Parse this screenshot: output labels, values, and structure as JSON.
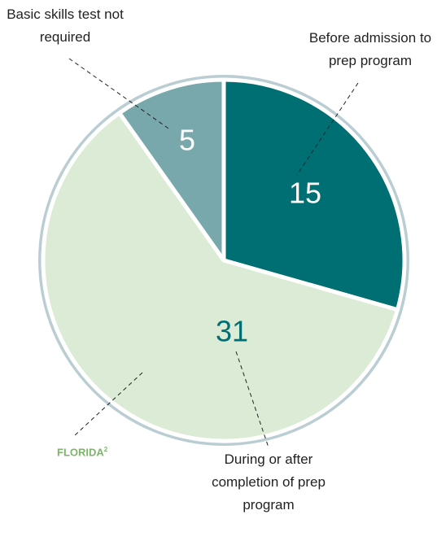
{
  "chart_data": {
    "type": "pie",
    "categories": [
      "Before admission to prep program",
      "During or after completion of prep program",
      "Basic skills test not required"
    ],
    "values": [
      15,
      31,
      5
    ],
    "colors": [
      "#006f74",
      "#dcebd6",
      "#78a8ab"
    ],
    "value_colors": [
      "#ffffff",
      "#006f74",
      "#ffffff"
    ],
    "annotation": {
      "text": "FLORIDA",
      "superscript": "2"
    }
  }
}
